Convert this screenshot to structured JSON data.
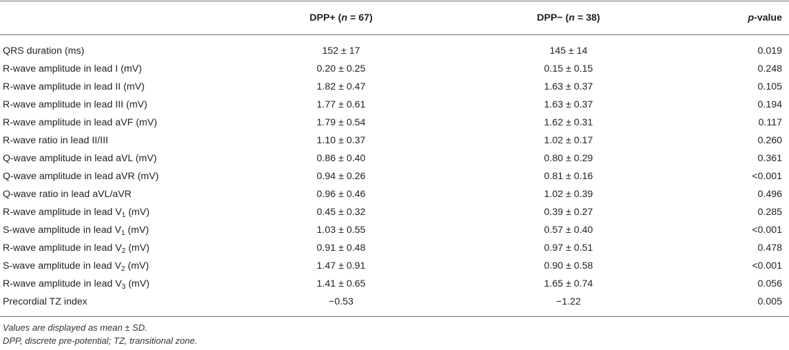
{
  "table": {
    "headers": {
      "col1": "",
      "col2_prefix": "DPP+ (",
      "col2_n": "n",
      "col2_suffix": " = 67)",
      "col3_prefix": "DPP− (",
      "col3_n": "n",
      "col3_suffix": " = 38)",
      "col4_p": "p",
      "col4_suffix": "-value"
    },
    "rows": [
      {
        "label": "QRS duration (ms)",
        "sub": "",
        "unit": "",
        "dpp_pos": "152 ± 17",
        "dpp_neg": "145 ± 14",
        "p": "0.019"
      },
      {
        "label": "R-wave amplitude in lead I (mV)",
        "sub": "",
        "unit": "",
        "dpp_pos": "0.20 ± 0.25",
        "dpp_neg": "0.15 ± 0.15",
        "p": "0.248"
      },
      {
        "label": "R-wave amplitude in lead II (mV)",
        "sub": "",
        "unit": "",
        "dpp_pos": "1.82 ± 0.47",
        "dpp_neg": "1.63 ± 0.37",
        "p": "0.105"
      },
      {
        "label": "R-wave amplitude in lead III (mV)",
        "sub": "",
        "unit": "",
        "dpp_pos": "1.77 ± 0.61",
        "dpp_neg": "1.63 ± 0.37",
        "p": "0.194"
      },
      {
        "label": "R-wave amplitude in lead aVF (mV)",
        "sub": "",
        "unit": "",
        "dpp_pos": "1.79 ± 0.54",
        "dpp_neg": "1.62 ± 0.31",
        "p": "0.117"
      },
      {
        "label": "R-wave ratio in lead II/III",
        "sub": "",
        "unit": "",
        "dpp_pos": "1.10 ± 0.37",
        "dpp_neg": "1.02 ± 0.17",
        "p": "0.260"
      },
      {
        "label": "Q-wave amplitude in lead aVL (mV)",
        "sub": "",
        "unit": "",
        "dpp_pos": "0.86 ± 0.40",
        "dpp_neg": "0.80 ± 0.29",
        "p": "0.361"
      },
      {
        "label": "Q-wave amplitude in lead aVR (mV)",
        "sub": "",
        "unit": "",
        "dpp_pos": "0.94 ± 0.26",
        "dpp_neg": "0.81 ± 0.16",
        "p": "<0.001"
      },
      {
        "label": "Q-wave ratio in lead aVL/aVR",
        "sub": "",
        "unit": "",
        "dpp_pos": "0.96 ± 0.46",
        "dpp_neg": "1.02 ± 0.39",
        "p": "0.496"
      },
      {
        "label": "R-wave amplitude in lead V",
        "sub": "1",
        "unit": " (mV)",
        "dpp_pos": "0.45 ± 0.32",
        "dpp_neg": "0.39 ± 0.27",
        "p": "0.285"
      },
      {
        "label": "S-wave amplitude in lead V",
        "sub": "1",
        "unit": " (mV)",
        "dpp_pos": "1.03 ± 0.55",
        "dpp_neg": "0.57 ± 0.40",
        "p": "<0.001"
      },
      {
        "label": "R-wave amplitude in lead V",
        "sub": "2",
        "unit": " (mV)",
        "dpp_pos": "0.91 ± 0.48",
        "dpp_neg": "0.97 ± 0.51",
        "p": "0.478"
      },
      {
        "label": "S-wave amplitude in lead V",
        "sub": "2",
        "unit": " (mV)",
        "dpp_pos": "1.47 ± 0.91",
        "dpp_neg": "0.90 ± 0.58",
        "p": "<0.001"
      },
      {
        "label": "R-wave amplitude in lead V",
        "sub": "3",
        "unit": " (mV)",
        "dpp_pos": "1.41 ± 0.65",
        "dpp_neg": "1.65 ± 0.74",
        "p": "0.056"
      },
      {
        "label": "Precordial TZ index",
        "sub": "",
        "unit": "",
        "dpp_pos": "−0.53",
        "dpp_neg": "−1.22",
        "p": "0.005"
      }
    ]
  },
  "footnotes": {
    "line1": "Values are displayed as mean ± SD.",
    "line2": "DPP, discrete pre-potential; TZ, transitional zone."
  }
}
